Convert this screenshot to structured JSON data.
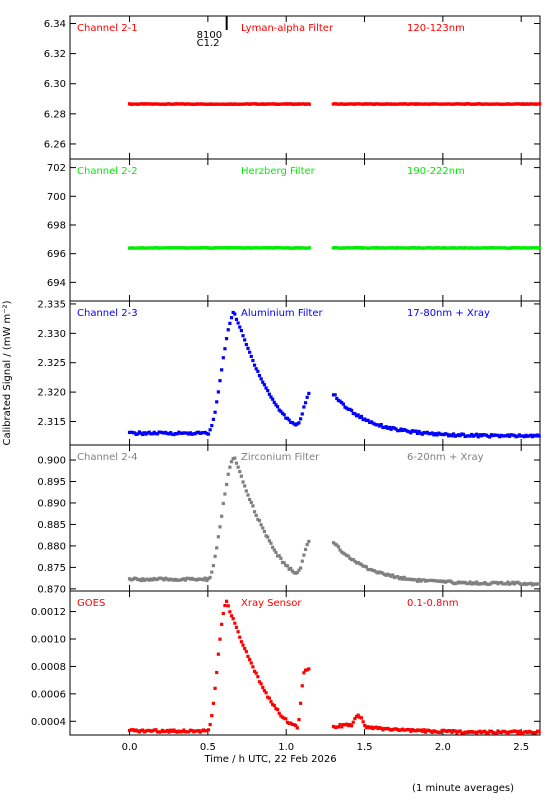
{
  "chart_data": {
    "type": "scatter",
    "xlabel": "Time / h UTC, 22 Feb 2026",
    "ylabel": "Calibrated Signal / (mW m⁻²)",
    "footnote": "(1 minute averages)",
    "xlim": [
      -0.38,
      2.62
    ],
    "xticks": [
      "0.0",
      "0.5",
      "1.0",
      "1.5",
      "2.0",
      "2.5"
    ],
    "xtick_values": [
      0,
      0.5,
      1.0,
      1.5,
      2.0,
      2.5
    ],
    "marker_annotation": {
      "x": 0.62,
      "lines": [
        "8100",
        "C1.2"
      ]
    },
    "data_gap": [
      1.15,
      1.3
    ],
    "panels": [
      {
        "channel": "Channel 2-1",
        "filter": "Lyman-alpha Filter",
        "band": "120-123nm",
        "color": "#ff0000",
        "ylim": [
          6.25,
          6.345
        ],
        "yticks": [
          "6.34",
          "6.32",
          "6.30",
          "6.28",
          "6.26"
        ],
        "ytick_values": [
          6.34,
          6.32,
          6.3,
          6.28,
          6.26
        ],
        "model": "flat",
        "base": 6.2865
      },
      {
        "channel": "Channel 2-2",
        "filter": "Herzberg Filter",
        "band": "190-222nm",
        "color": "#00ee00",
        "ylim": [
          692.7,
          702.6
        ],
        "yticks": [
          "702",
          "700",
          "698",
          "696",
          "694"
        ],
        "ytick_values": [
          702,
          700,
          698,
          696,
          694
        ],
        "model": "flat",
        "base": 696.4
      },
      {
        "channel": "Channel 2-3",
        "filter": "Aluminium Filter",
        "band": "17-80nm + Xray",
        "color": "#0000ff",
        "ylim": [
          2.311,
          2.3355
        ],
        "yticks": [
          "2.335",
          "2.330",
          "2.325",
          "2.320",
          "2.315"
        ],
        "ytick_values": [
          2.335,
          2.33,
          2.325,
          2.32,
          2.315
        ],
        "model": "flare",
        "base": 2.313,
        "peak": 2.3335,
        "post": 2.3145,
        "bump": 2.3197,
        "tail": 2.3125
      },
      {
        "channel": "Channel 2-4",
        "filter": "Zirconium Filter",
        "band": "6-20nm + Xray",
        "color": "#808080",
        "ylim": [
          0.8695,
          0.9035
        ],
        "yticks": [
          "0.900",
          "0.895",
          "0.890",
          "0.885",
          "0.880",
          "0.875",
          "0.870"
        ],
        "ytick_values": [
          0.9,
          0.895,
          0.89,
          0.885,
          0.88,
          0.875,
          0.87
        ],
        "model": "flare",
        "base": 0.8722,
        "peak": 0.9005,
        "post": 0.8738,
        "bump": 0.881,
        "tail": 0.8712
      },
      {
        "channel": "GOES",
        "filter": "Xray Sensor",
        "band": "0.1-0.8nm",
        "color": "#ff0000",
        "ylim": [
          0.0003,
          0.00135
        ],
        "yticks": [
          "0.0012",
          "0.0010",
          "0.0008",
          "0.0006",
          "0.0004"
        ],
        "ytick_values": [
          0.0012,
          0.001,
          0.0008,
          0.0006,
          0.0004
        ],
        "model": "goes",
        "base": 0.00033,
        "peak": 0.00127,
        "post": 0.00036,
        "bump": 0.00078,
        "tail": 0.00032
      }
    ]
  }
}
